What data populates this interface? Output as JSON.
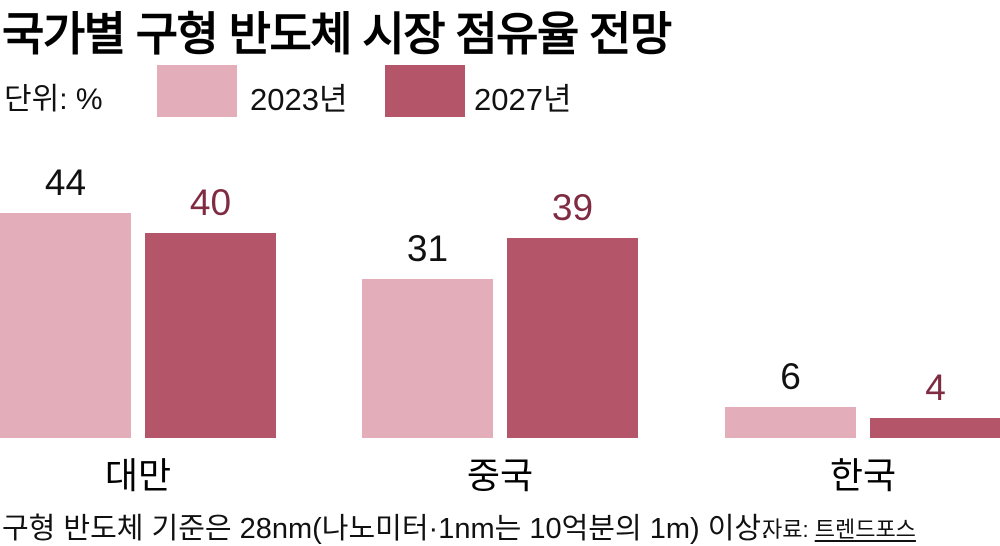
{
  "title": "국가별 구형 반도체 시장 점유율 전망",
  "unit_label": "단위: %",
  "legend": [
    {
      "label": "2023년",
      "color": "#e3aeba"
    },
    {
      "label": "2027년",
      "color": "#b55569"
    }
  ],
  "chart_data": {
    "type": "bar",
    "title": "국가별 구형 반도체 시장 점유율 전망",
    "unit": "%",
    "categories": [
      "대만",
      "중국",
      "한국"
    ],
    "series": [
      {
        "name": "2023년",
        "values": [
          44,
          31,
          6
        ],
        "color": "#e3aeba",
        "label_color": "#111111"
      },
      {
        "name": "2027년",
        "values": [
          40,
          39,
          4
        ],
        "color": "#b55569",
        "label_color": "#7f2c43"
      }
    ],
    "ylim": [
      0,
      48
    ],
    "grid": false,
    "axis_line": false,
    "legend_position": "top",
    "value_labels": "above-bars"
  },
  "footnote": "구형 반도체 기준은 28nm(나노미터·1nm는 10억분의 1m) 이상.",
  "source_prefix": "자료: ",
  "source": "트렌드포스"
}
